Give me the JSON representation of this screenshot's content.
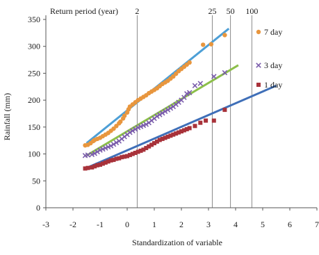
{
  "chart_data": {
    "type": "scatter",
    "title": "",
    "xlabel": "Standardization of variable",
    "ylabel": "Rainfall (mm)",
    "xlim": [
      -3,
      7
    ],
    "ylim": [
      0,
      350
    ],
    "x_ticks": [
      -3,
      -2,
      -1,
      0,
      1,
      2,
      3,
      4,
      5,
      6,
      7
    ],
    "x_tick_labels": [
      "-3",
      "-2",
      "-1",
      "0",
      "1",
      "2",
      "3",
      "4",
      "5",
      "6",
      "7"
    ],
    "y_ticks": [
      0,
      50,
      100,
      150,
      200,
      250,
      300,
      350
    ],
    "y_tick_labels": [
      "0",
      "50",
      "100",
      "150",
      "200",
      "250",
      "300",
      "350"
    ],
    "grid": false,
    "legend_position": "right",
    "return_period": {
      "label": "Return period (year)",
      "markers": [
        {
          "label": "2",
          "x": 0.37
        },
        {
          "label": "25",
          "x": 3.14
        },
        {
          "label": "50",
          "x": 3.81
        },
        {
          "label": "100",
          "x": 4.6
        }
      ]
    },
    "series": [
      {
        "name": "7 day",
        "marker": "circle",
        "color": "#e8963e",
        "fit_color": "#4d9fd6",
        "fit": {
          "x": [
            -1.5,
            3.75
          ],
          "y": [
            120,
            333
          ]
        },
        "points": [
          [
            -1.55,
            116
          ],
          [
            -1.45,
            117
          ],
          [
            -1.35,
            120
          ],
          [
            -1.25,
            124
          ],
          [
            -1.2,
            126
          ],
          [
            -1.1,
            128
          ],
          [
            -1.0,
            130
          ],
          [
            -0.9,
            133
          ],
          [
            -0.8,
            136
          ],
          [
            -0.7,
            139
          ],
          [
            -0.6,
            143
          ],
          [
            -0.5,
            147
          ],
          [
            -0.4,
            152
          ],
          [
            -0.3,
            157
          ],
          [
            -0.25,
            160
          ],
          [
            -0.15,
            166
          ],
          [
            -0.1,
            171
          ],
          [
            0.0,
            177
          ],
          [
            0.05,
            183
          ],
          [
            0.1,
            188
          ],
          [
            0.2,
            192
          ],
          [
            0.3,
            196
          ],
          [
            0.4,
            200
          ],
          [
            0.5,
            203
          ],
          [
            0.6,
            206
          ],
          [
            0.7,
            209
          ],
          [
            0.8,
            213
          ],
          [
            0.9,
            216
          ],
          [
            1.0,
            219
          ],
          [
            1.1,
            222
          ],
          [
            1.2,
            226
          ],
          [
            1.3,
            230
          ],
          [
            1.4,
            233
          ],
          [
            1.5,
            236
          ],
          [
            1.6,
            240
          ],
          [
            1.7,
            244
          ],
          [
            1.8,
            249
          ],
          [
            1.9,
            254
          ],
          [
            2.0,
            258
          ],
          [
            2.1,
            262
          ],
          [
            2.2,
            266
          ],
          [
            2.3,
            270
          ],
          [
            2.8,
            303
          ],
          [
            3.1,
            304
          ],
          [
            3.6,
            321
          ]
        ]
      },
      {
        "name": "3 day",
        "marker": "cross",
        "color": "#7a5cab",
        "fit_color": "#8cbf4a",
        "fit": {
          "x": [
            -1.5,
            4.1
          ],
          "y": [
            97,
            265
          ]
        },
        "points": [
          [
            -1.55,
            97
          ],
          [
            -1.45,
            98
          ],
          [
            -1.3,
            99
          ],
          [
            -1.2,
            101
          ],
          [
            -1.1,
            104
          ],
          [
            -1.0,
            107
          ],
          [
            -0.9,
            109
          ],
          [
            -0.8,
            111
          ],
          [
            -0.7,
            113
          ],
          [
            -0.6,
            115
          ],
          [
            -0.5,
            118
          ],
          [
            -0.4,
            121
          ],
          [
            -0.3,
            124
          ],
          [
            -0.2,
            128
          ],
          [
            -0.1,
            132
          ],
          [
            0.0,
            136
          ],
          [
            0.1,
            140
          ],
          [
            0.2,
            143
          ],
          [
            0.3,
            146
          ],
          [
            0.4,
            149
          ],
          [
            0.5,
            151
          ],
          [
            0.6,
            153
          ],
          [
            0.7,
            155
          ],
          [
            0.8,
            158
          ],
          [
            0.9,
            162
          ],
          [
            1.0,
            166
          ],
          [
            1.1,
            170
          ],
          [
            1.2,
            173
          ],
          [
            1.3,
            176
          ],
          [
            1.4,
            179
          ],
          [
            1.5,
            182
          ],
          [
            1.6,
            185
          ],
          [
            1.7,
            188
          ],
          [
            1.8,
            192
          ],
          [
            1.9,
            196
          ],
          [
            2.0,
            200
          ],
          [
            2.1,
            205
          ],
          [
            2.2,
            212
          ],
          [
            2.3,
            214
          ],
          [
            2.5,
            227
          ],
          [
            2.7,
            231
          ],
          [
            3.2,
            244
          ],
          [
            3.6,
            251
          ]
        ]
      },
      {
        "name": "1 day",
        "marker": "square",
        "color": "#a8323a",
        "fit_color": "#3f6fb8",
        "fit": {
          "x": [
            -1.5,
            5.5
          ],
          "y": [
            74,
            227
          ]
        },
        "points": [
          [
            -1.55,
            73
          ],
          [
            -1.45,
            74
          ],
          [
            -1.3,
            75
          ],
          [
            -1.2,
            77
          ],
          [
            -1.1,
            79
          ],
          [
            -1.0,
            80
          ],
          [
            -0.9,
            82
          ],
          [
            -0.8,
            84
          ],
          [
            -0.7,
            86
          ],
          [
            -0.6,
            88
          ],
          [
            -0.5,
            89
          ],
          [
            -0.4,
            91
          ],
          [
            -0.3,
            92
          ],
          [
            -0.2,
            94
          ],
          [
            -0.1,
            95
          ],
          [
            0.0,
            96
          ],
          [
            0.1,
            98
          ],
          [
            0.2,
            100
          ],
          [
            0.3,
            102
          ],
          [
            0.4,
            104
          ],
          [
            0.5,
            106
          ],
          [
            0.6,
            108
          ],
          [
            0.7,
            111
          ],
          [
            0.8,
            114
          ],
          [
            0.9,
            117
          ],
          [
            1.0,
            120
          ],
          [
            1.1,
            123
          ],
          [
            1.2,
            126
          ],
          [
            1.3,
            128
          ],
          [
            1.4,
            130
          ],
          [
            1.5,
            132
          ],
          [
            1.6,
            134
          ],
          [
            1.7,
            136
          ],
          [
            1.8,
            138
          ],
          [
            1.9,
            140
          ],
          [
            2.0,
            142
          ],
          [
            2.1,
            144
          ],
          [
            2.2,
            146
          ],
          [
            2.3,
            148
          ],
          [
            2.5,
            152
          ],
          [
            2.7,
            158
          ],
          [
            2.9,
            162
          ],
          [
            3.2,
            162
          ],
          [
            3.6,
            182
          ]
        ]
      }
    ]
  }
}
